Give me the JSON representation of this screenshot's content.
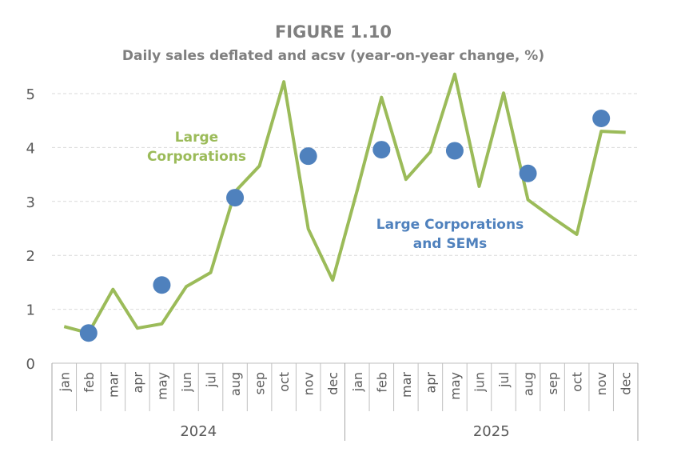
{
  "chart_data": {
    "type": "line",
    "title": "FIGURE 1.10",
    "subtitle": "Daily sales deflated and acsv (year-on-year change, %)",
    "xlabel": "",
    "ylabel": "",
    "ylim": [
      0,
      5
    ],
    "yticks": [
      "0",
      "1",
      "2",
      "3",
      "4",
      "5"
    ],
    "grid": true,
    "groups": [
      {
        "label": "2024",
        "categories": [
          "jan",
          "feb",
          "mar",
          "apr",
          "may",
          "jun",
          "jul",
          "aug",
          "sep",
          "oct",
          "nov",
          "dec"
        ]
      },
      {
        "label": "2025",
        "categories": [
          "jan",
          "feb",
          "mar",
          "apr",
          "may",
          "jun",
          "jul",
          "aug",
          "sep",
          "oct",
          "nov",
          "dec"
        ]
      }
    ],
    "series": [
      {
        "name": "Large Corporations",
        "style": "line",
        "color": "#9BBB59",
        "values": [
          0.68,
          0.56,
          1.37,
          0.65,
          0.73,
          1.42,
          1.68,
          3.18,
          3.66,
          5.22,
          2.49,
          1.54,
          3.2,
          4.93,
          3.41,
          3.92,
          5.36,
          3.28,
          5.01,
          3.03,
          2.7,
          2.39,
          4.3,
          4.28
        ]
      },
      {
        "name": "Large Corporations and SEMs",
        "style": "markers",
        "color": "#4F81BD",
        "values": [
          null,
          0.56,
          null,
          null,
          1.45,
          null,
          null,
          3.07,
          null,
          null,
          3.84,
          null,
          null,
          3.96,
          null,
          null,
          3.94,
          null,
          null,
          3.52,
          null,
          null,
          4.54,
          null
        ]
      }
    ],
    "annotations": {
      "line_label": [
        "Large",
        "Corporations"
      ],
      "marker_label": [
        "Large Corporations",
        "and SEMs"
      ]
    }
  }
}
